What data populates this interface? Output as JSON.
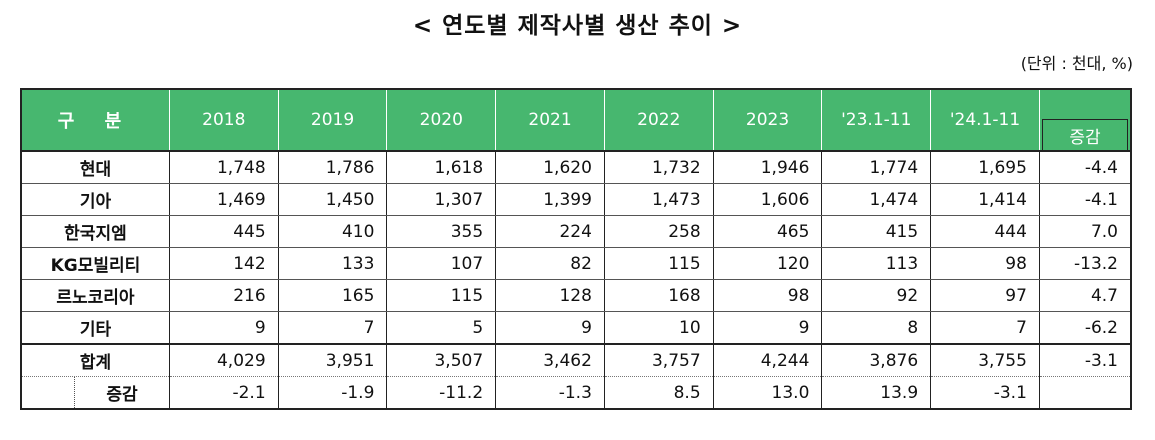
{
  "title": "< 연도별 제작사별 생산 추이 >",
  "unit": "(단위 : 천대, %)",
  "header": {
    "label": "구 분",
    "years": [
      "2018",
      "2019",
      "2020",
      "2021",
      "2022",
      "2023",
      "'23.1-11",
      "'24.1-11"
    ],
    "increase": "증감"
  },
  "rows": [
    {
      "label": "현대",
      "values": [
        "1,748",
        "1,786",
        "1,618",
        "1,620",
        "1,732",
        "1,946",
        "1,774",
        "1,695"
      ],
      "change": "-4.4"
    },
    {
      "label": "기아",
      "values": [
        "1,469",
        "1,450",
        "1,307",
        "1,399",
        "1,473",
        "1,606",
        "1,474",
        "1,414"
      ],
      "change": "-4.1"
    },
    {
      "label": "한국지엠",
      "values": [
        "445",
        "410",
        "355",
        "224",
        "258",
        "465",
        "415",
        "444"
      ],
      "change": "7.0"
    },
    {
      "label": "KG모빌리티",
      "values": [
        "142",
        "133",
        "107",
        "82",
        "115",
        "120",
        "113",
        "98"
      ],
      "change": "-13.2"
    },
    {
      "label": "르노코리아",
      "values": [
        "216",
        "165",
        "115",
        "128",
        "168",
        "98",
        "92",
        "97"
      ],
      "change": "4.7"
    },
    {
      "label": "기타",
      "values": [
        "9",
        "7",
        "5",
        "9",
        "10",
        "9",
        "8",
        "7"
      ],
      "change": "-6.2"
    }
  ],
  "total": {
    "label": "합계",
    "values": [
      "4,029",
      "3,951",
      "3,507",
      "3,462",
      "3,757",
      "4,244",
      "3,876",
      "3,755"
    ],
    "change": "-3.1"
  },
  "total_change": {
    "label": "증감",
    "values": [
      "-2.1",
      "-1.9",
      "-11.2",
      "-1.3",
      "8.5",
      "13.0",
      "13.9",
      "-3.1"
    ]
  }
}
